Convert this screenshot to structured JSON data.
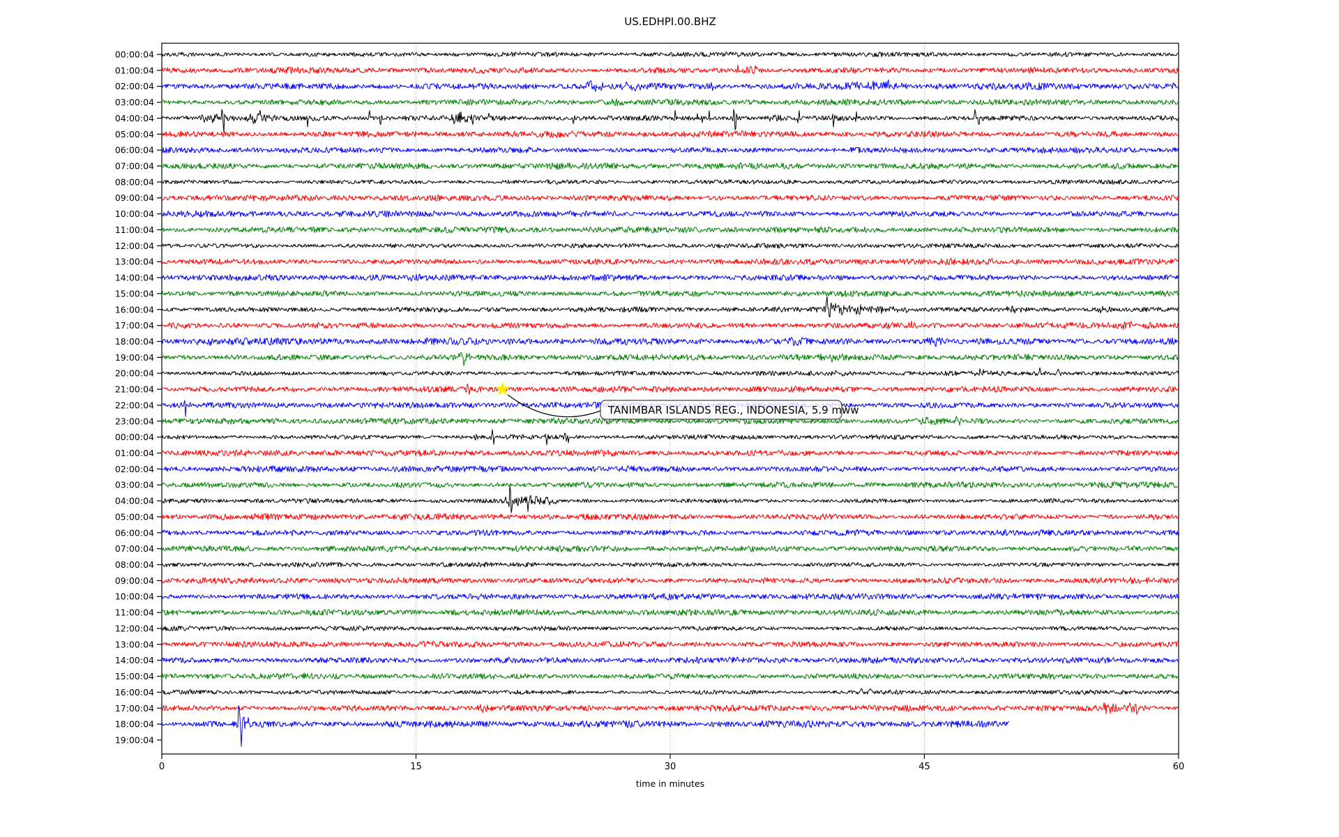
{
  "title": "US.EDHPI.00.BHZ",
  "chart_data": {
    "type": "line",
    "subtype": "helicorder-dayplot",
    "xlabel": "time in minutes",
    "xlim": [
      0,
      60
    ],
    "x_ticks": [
      0,
      15,
      30,
      45,
      60
    ],
    "grid": "vertical-dotted",
    "trace_color_cycle": [
      "#000000",
      "#ff0000",
      "#0000ff",
      "#008000"
    ],
    "annotation": {
      "text": "TANIMBAR ISLANDS REG., INDONESIA, 5.9 mww",
      "marker_row_label": "21:00:04",
      "marker_minute": 20.1,
      "marker_symbol": "star",
      "marker_color": "#ffee00"
    },
    "rows": [
      {
        "label": "00:00:04",
        "color": "#000000",
        "ev": []
      },
      {
        "label": "01:00:04",
        "color": "#ff0000",
        "ev": [
          [
            34.0,
            12,
            0.05,
            "s"
          ],
          [
            34.7,
            -6,
            0.25,
            "b"
          ],
          [
            34.9,
            6,
            0.3,
            "b"
          ]
        ]
      },
      {
        "label": "02:00:04",
        "color": "#0000ff",
        "na": 4.0,
        "ev": [
          [
            25.5,
            6,
            0.5,
            "b"
          ],
          [
            27.8,
            5,
            0.4,
            "b"
          ],
          [
            32.5,
            -7,
            0.06,
            "s"
          ],
          [
            41.8,
            6,
            0.7,
            "b"
          ],
          [
            43.0,
            6,
            0.5,
            "b"
          ]
        ]
      },
      {
        "label": "03:00:04",
        "color": "#008000",
        "ev": [
          [
            27.0,
            5,
            0.3,
            "b"
          ]
        ]
      },
      {
        "label": "04:00:04",
        "color": "#000000",
        "na": 3.2,
        "ev": [
          [
            2.9,
            6,
            0.6,
            "b"
          ],
          [
            3.55,
            22,
            0.06,
            "s"
          ],
          [
            3.65,
            -20,
            0.06,
            "s"
          ],
          [
            5.6,
            9,
            0.35,
            "b"
          ],
          [
            8.6,
            -8,
            0.06,
            "s"
          ],
          [
            12.25,
            12,
            0.06,
            "s"
          ],
          [
            12.9,
            -13,
            0.06,
            "s"
          ],
          [
            17.5,
            8,
            0.35,
            "b"
          ],
          [
            18.35,
            -11,
            0.07,
            "s"
          ],
          [
            19.3,
            7,
            0.07,
            "s"
          ],
          [
            24.3,
            -6,
            0.07,
            "s"
          ],
          [
            30.3,
            10,
            0.06,
            "s"
          ],
          [
            31.6,
            9,
            0.06,
            "s"
          ],
          [
            31.9,
            -8,
            0.06,
            "s"
          ],
          [
            32.3,
            12,
            0.06,
            "s"
          ],
          [
            33.75,
            15,
            0.05,
            "s"
          ],
          [
            33.85,
            -20,
            0.06,
            "s"
          ],
          [
            36.1,
            5,
            0.3,
            "b"
          ],
          [
            37.6,
            13,
            0.06,
            "s"
          ],
          [
            39.65,
            -15,
            0.06,
            "s"
          ],
          [
            41.0,
            9,
            0.06,
            "s"
          ],
          [
            48.0,
            12,
            0.1,
            "s"
          ],
          [
            48.2,
            -9,
            0.07,
            "s"
          ]
        ]
      },
      {
        "label": "05:00:04",
        "color": "#ff0000",
        "ev": []
      },
      {
        "label": "06:00:04",
        "color": "#0000ff",
        "ev": [
          [
            18.6,
            6,
            0.06,
            "s"
          ]
        ]
      },
      {
        "label": "07:00:04",
        "color": "#008000",
        "ev": []
      },
      {
        "label": "08:00:04",
        "color": "#000000",
        "ev": []
      },
      {
        "label": "09:00:04",
        "color": "#ff0000",
        "ev": []
      },
      {
        "label": "10:00:04",
        "color": "#0000ff",
        "ev": []
      },
      {
        "label": "11:00:04",
        "color": "#008000",
        "ev": []
      },
      {
        "label": "12:00:04",
        "color": "#000000",
        "ev": []
      },
      {
        "label": "13:00:04",
        "color": "#ff0000",
        "ev": []
      },
      {
        "label": "14:00:04",
        "color": "#0000ff",
        "ev": []
      },
      {
        "label": "15:00:04",
        "color": "#008000",
        "ev": []
      },
      {
        "label": "16:00:04",
        "color": "#000000",
        "na": 3.0,
        "ev": [
          [
            39.25,
            16,
            0.08,
            "s"
          ],
          [
            39.4,
            -21,
            0.08,
            "s"
          ],
          [
            39.9,
            7,
            0.5,
            "b"
          ],
          [
            40.8,
            6,
            0.5,
            "b"
          ],
          [
            41.9,
            4,
            0.8,
            "b"
          ],
          [
            43.5,
            3.5,
            1.2,
            "b"
          ],
          [
            50.3,
            4,
            0.5,
            "b"
          ],
          [
            53.2,
            4,
            0.4,
            "b"
          ],
          [
            55.6,
            4,
            0.4,
            "b"
          ]
        ]
      },
      {
        "label": "17:00:04",
        "color": "#ff0000",
        "ev": [
          [
            3.1,
            6,
            0.06,
            "s"
          ],
          [
            44.0,
            4,
            0.3,
            "b"
          ],
          [
            52.6,
            4,
            0.3,
            "b"
          ],
          [
            56.9,
            5,
            0.3,
            "b"
          ],
          [
            58.1,
            4,
            0.3,
            "b"
          ]
        ]
      },
      {
        "label": "18:00:04",
        "color": "#0000ff",
        "na": 4.2,
        "ev": [
          [
            2.6,
            5,
            0.4,
            "b"
          ],
          [
            37.2,
            4,
            0.4,
            "b"
          ],
          [
            45.4,
            5,
            0.5,
            "b"
          ]
        ]
      },
      {
        "label": "19:00:04",
        "color": "#008000",
        "ev": [
          [
            17.8,
            9,
            0.25,
            "b"
          ],
          [
            39.4,
            4,
            0.4,
            "b"
          ]
        ]
      },
      {
        "label": "20:00:04",
        "color": "#000000",
        "ev": [
          [
            40.0,
            4,
            0.3,
            "b"
          ],
          [
            48.3,
            5,
            0.2,
            "b"
          ],
          [
            51.8,
            5,
            0.15,
            "s"
          ],
          [
            52.9,
            4,
            0.15,
            "s"
          ]
        ]
      },
      {
        "label": "21:00:04",
        "color": "#ff0000",
        "ev": [
          [
            18.05,
            11,
            0.07,
            "s"
          ],
          [
            18.15,
            -9,
            0.06,
            "s"
          ]
        ]
      },
      {
        "label": "22:00:04",
        "color": "#0000ff",
        "ev": [
          [
            1.4,
            -18,
            0.05,
            "s"
          ],
          [
            34.9,
            6,
            0.06,
            "s"
          ]
        ]
      },
      {
        "label": "23:00:04",
        "color": "#008000",
        "ev": [
          [
            45.2,
            5,
            0.4,
            "b"
          ],
          [
            46.9,
            4,
            0.3,
            "b"
          ]
        ]
      },
      {
        "label": "00:00:04",
        "color": "#000000",
        "ev": [
          [
            18.5,
            -8,
            0.06,
            "s"
          ],
          [
            19.5,
            14,
            0.07,
            "s"
          ],
          [
            19.6,
            -7,
            0.06,
            "s"
          ],
          [
            21.3,
            6,
            0.07,
            "s"
          ],
          [
            22.7,
            -9,
            0.08,
            "s"
          ],
          [
            23.8,
            10,
            0.07,
            "s"
          ],
          [
            24.0,
            -7,
            0.06,
            "s"
          ]
        ]
      },
      {
        "label": "01:00:04",
        "color": "#ff0000",
        "ev": []
      },
      {
        "label": "02:00:04",
        "color": "#0000ff",
        "ev": []
      },
      {
        "label": "03:00:04",
        "color": "#008000",
        "ev": []
      },
      {
        "label": "04:00:04",
        "color": "#000000",
        "ev": [
          [
            20.55,
            22,
            0.07,
            "s"
          ],
          [
            20.65,
            -18,
            0.07,
            "s"
          ],
          [
            21.0,
            7,
            0.5,
            "b"
          ],
          [
            21.6,
            -11,
            0.08,
            "s"
          ],
          [
            21.75,
            9,
            0.07,
            "s"
          ],
          [
            22.1,
            10,
            0.1,
            "s"
          ],
          [
            22.4,
            -8,
            0.2,
            "b"
          ],
          [
            23.0,
            5,
            0.3,
            "b"
          ]
        ]
      },
      {
        "label": "05:00:04",
        "color": "#ff0000",
        "ev": []
      },
      {
        "label": "06:00:04",
        "color": "#0000ff",
        "ev": []
      },
      {
        "label": "07:00:04",
        "color": "#008000",
        "ev": []
      },
      {
        "label": "08:00:04",
        "color": "#000000",
        "ev": []
      },
      {
        "label": "09:00:04",
        "color": "#ff0000",
        "ev": []
      },
      {
        "label": "10:00:04",
        "color": "#0000ff",
        "ev": []
      },
      {
        "label": "11:00:04",
        "color": "#008000",
        "ev": []
      },
      {
        "label": "12:00:04",
        "color": "#000000",
        "ev": []
      },
      {
        "label": "13:00:04",
        "color": "#ff0000",
        "ev": []
      },
      {
        "label": "14:00:04",
        "color": "#0000ff",
        "ev": []
      },
      {
        "label": "15:00:04",
        "color": "#008000",
        "ev": []
      },
      {
        "label": "16:00:04",
        "color": "#000000",
        "ev": [
          [
            41.3,
            5,
            0.15,
            "s"
          ],
          [
            41.8,
            5,
            0.15,
            "s"
          ]
        ]
      },
      {
        "label": "17:00:04",
        "color": "#ff0000",
        "ev": [
          [
            19.0,
            6,
            0.3,
            "b"
          ],
          [
            55.9,
            8,
            0.35,
            "b"
          ],
          [
            57.4,
            7,
            0.35,
            "b"
          ]
        ]
      },
      {
        "label": "18:00:04",
        "color": "#0000ff",
        "na": 4.0,
        "end": 50,
        "ev": [
          [
            4.55,
            24,
            0.08,
            "s"
          ],
          [
            4.7,
            -27,
            0.09,
            "s"
          ],
          [
            4.9,
            12,
            0.25,
            "b"
          ],
          [
            5.1,
            -8,
            0.2,
            "b"
          ]
        ]
      },
      {
        "label": "19:00:04",
        "color": "#008000",
        "trace": false,
        "ev": []
      }
    ]
  }
}
